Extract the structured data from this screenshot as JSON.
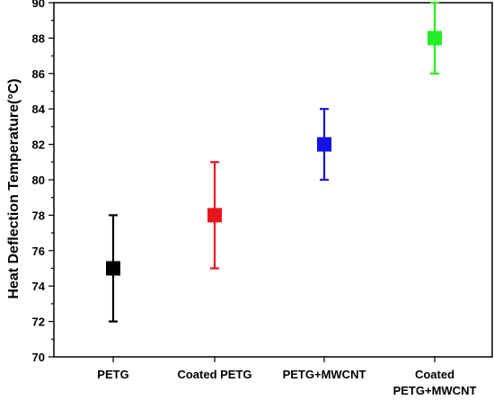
{
  "chart_data": {
    "type": "scatter",
    "title": "",
    "xlabel": "",
    "ylabel": "Heat Deflection Temperature(°C)",
    "ylim": [
      70,
      90
    ],
    "yticks": [
      70,
      72,
      74,
      76,
      78,
      80,
      82,
      84,
      86,
      88,
      90
    ],
    "grid": false,
    "legend": "none",
    "categories": [
      [
        "PETG"
      ],
      [
        "Coated PETG"
      ],
      [
        "PETG+MWCNT"
      ],
      [
        "Coated",
        "PETG+MWCNT"
      ]
    ],
    "points": [
      {
        "value": 75,
        "lower": 72,
        "upper": 78,
        "color": "#000000"
      },
      {
        "value": 78,
        "lower": 75,
        "upper": 81,
        "color": "#e8141b"
      },
      {
        "value": 82,
        "lower": 80,
        "upper": 84,
        "color": "#1414e6"
      },
      {
        "value": 88,
        "lower": 86,
        "upper": 90,
        "color": "#22ee22"
      }
    ]
  }
}
